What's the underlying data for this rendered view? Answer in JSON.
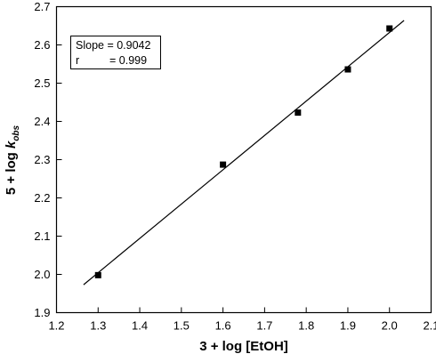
{
  "chart_data": {
    "type": "scatter",
    "title": "",
    "xlabel": "3 + log [EtOH]",
    "ylabel_main": "5 + log ",
    "ylabel_k": "k",
    "ylabel_sub": "obs",
    "xlim": [
      1.2,
      2.1
    ],
    "ylim": [
      1.9,
      2.7
    ],
    "x_ticks": [
      "1.2",
      "1.3",
      "1.4",
      "1.5",
      "1.6",
      "1.7",
      "1.8",
      "1.9",
      "2.0",
      "2.1"
    ],
    "y_ticks": [
      "1.9",
      "2.0",
      "2.1",
      "2.2",
      "2.3",
      "2.4",
      "2.5",
      "2.6",
      "2.7"
    ],
    "grid": false,
    "points": [
      {
        "x": 1.3,
        "y": 1.998
      },
      {
        "x": 1.6,
        "y": 2.287
      },
      {
        "x": 1.78,
        "y": 2.423
      },
      {
        "x": 1.9,
        "y": 2.536
      },
      {
        "x": 2.0,
        "y": 2.643
      }
    ],
    "fit_line": {
      "x0": 1.265,
      "y0": 1.973,
      "x1": 2.035,
      "y1": 2.664
    },
    "legend": {
      "line1": "Slope = 0.9042",
      "line2_label": "r",
      "line2_value": "= 0.999",
      "placement": "top-left"
    },
    "colors": {
      "marker": "#000000",
      "line": "#000000",
      "axis": "#000000"
    }
  }
}
